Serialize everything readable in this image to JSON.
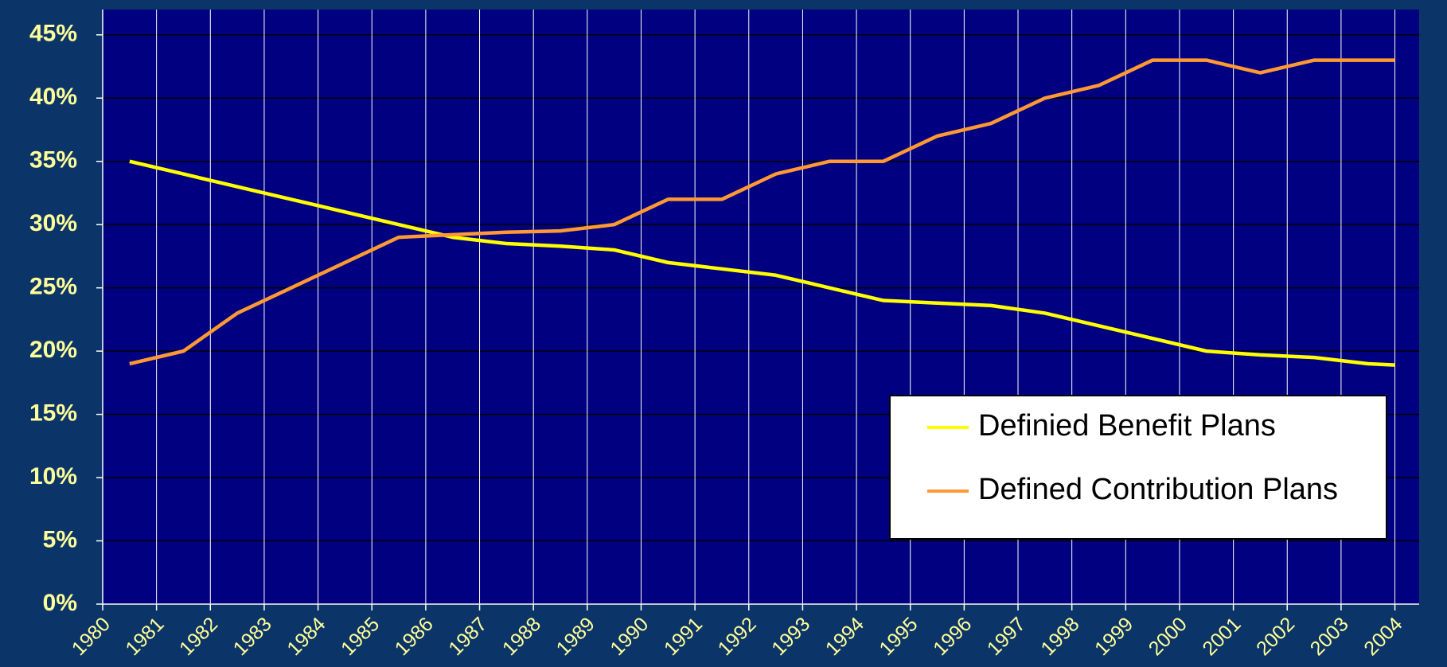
{
  "chart_data": {
    "type": "line",
    "x": [
      1980.5,
      1981.5,
      1982.5,
      1983.5,
      1984.5,
      1985.5,
      1986.5,
      1987.5,
      1988.5,
      1989.5,
      1990.5,
      1991.5,
      1992.5,
      1993.5,
      1994.5,
      1995.5,
      1996.5,
      1997.5,
      1998.5,
      1999.5,
      2000.5,
      2001.5,
      2002.5,
      2003.5,
      2004
    ],
    "series": [
      {
        "name": "Definied Benefit Plans",
        "color": "#ffff00",
        "values": [
          35,
          34,
          33,
          32,
          31,
          30,
          29,
          28.5,
          28.3,
          28,
          27,
          26.5,
          26,
          25,
          24,
          23.8,
          23.6,
          23,
          22,
          21,
          20,
          19.7,
          19.5,
          19,
          18.9
        ]
      },
      {
        "name": "Defined Contribution Plans",
        "color": "#ff9933",
        "values": [
          19,
          20,
          23,
          25,
          27,
          29,
          29.2,
          29.4,
          29.5,
          30,
          32,
          32,
          34,
          35,
          35,
          37,
          38,
          40,
          41,
          43,
          43,
          42,
          43,
          43,
          43
        ]
      }
    ],
    "xlim": [
      1980,
      2004.45
    ],
    "xticks": [
      1980,
      1981,
      1982,
      1983,
      1984,
      1985,
      1986,
      1987,
      1988,
      1989,
      1990,
      1991,
      1992,
      1993,
      1994,
      1995,
      1996,
      1997,
      1998,
      1999,
      2000,
      2001,
      2002,
      2003,
      2004
    ],
    "ylim": [
      0,
      47
    ],
    "yticks": [
      {
        "value": 0,
        "label": "0%"
      },
      {
        "value": 5,
        "label": "5%"
      },
      {
        "value": 10,
        "label": "10%"
      },
      {
        "value": 15,
        "label": "15%"
      },
      {
        "value": 20,
        "label": "20%"
      },
      {
        "value": 25,
        "label": "25%"
      },
      {
        "value": 30,
        "label": "30%"
      },
      {
        "value": 35,
        "label": "35%"
      },
      {
        "value": 40,
        "label": "40%"
      },
      {
        "value": 45,
        "label": "45%"
      }
    ],
    "grid": true,
    "legend": "lower right"
  }
}
